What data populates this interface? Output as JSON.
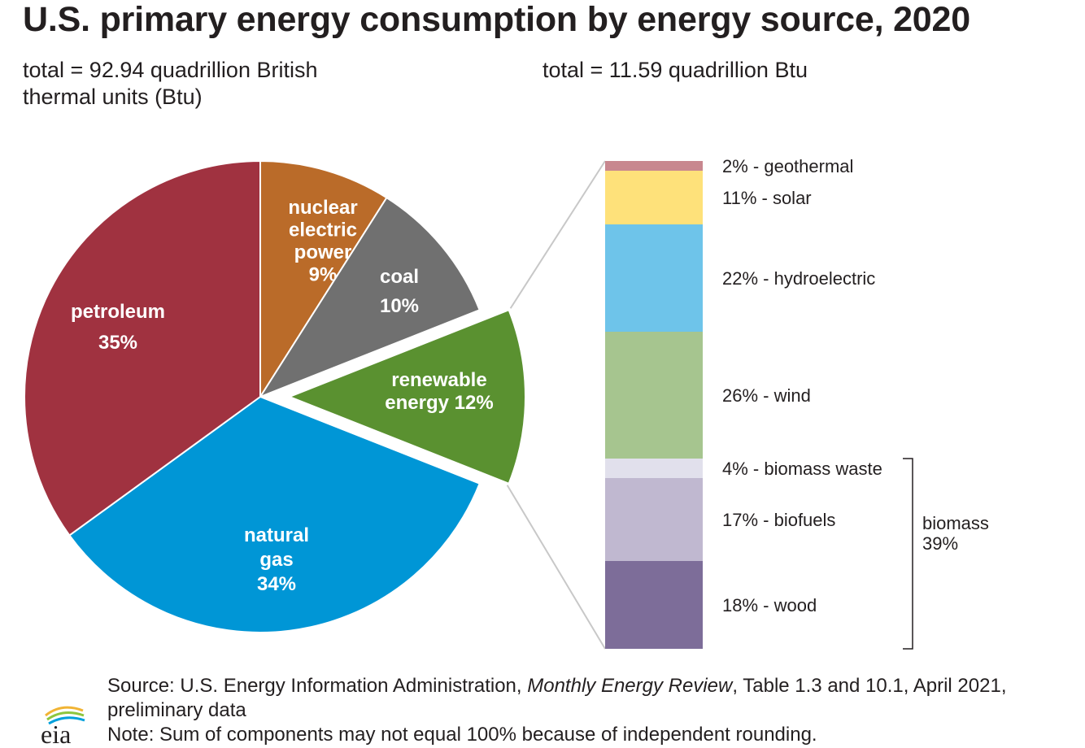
{
  "title": "U.S. primary energy consumption by energy source, 2020",
  "left_total": "total = 92.94 quadrillion British thermal units (Btu)",
  "right_total": "total = 11.59 quadrillion Btu",
  "source": {
    "prefix": "Source: U.S. Energy Information Administration, ",
    "publication": "Monthly Energy Review",
    "suffix": ", Table 1.3 and 10.1, April 2021, preliminary data"
  },
  "note": "Note: Sum of components may not equal 100% because of independent rounding.",
  "logo_text": "eia",
  "chart_data": [
    {
      "type": "pie",
      "title": "U.S. primary energy consumption by energy source, 2020",
      "total": "92.94 quadrillion British thermal units (Btu)",
      "slices": [
        {
          "key": "nuclear",
          "label_lines": [
            "nuclear",
            "electric",
            "power",
            "9%"
          ],
          "value": 9,
          "color": "#ba6b29"
        },
        {
          "key": "coal",
          "label_lines": [
            "coal",
            "10%"
          ],
          "value": 10,
          "color": "#707070"
        },
        {
          "key": "renewable",
          "label_lines": [
            "renewable",
            "energy 12%"
          ],
          "value": 12,
          "color": "#5a9130",
          "exploded": true
        },
        {
          "key": "natural-gas",
          "label_lines": [
            "natural",
            "gas",
            "34%"
          ],
          "value": 34,
          "color": "#0096d6"
        },
        {
          "key": "petroleum",
          "label_lines": [
            "petroleum",
            "35%"
          ],
          "value": 35,
          "color": "#a03240"
        }
      ]
    },
    {
      "type": "bar",
      "stacked": true,
      "total": "11.59 quadrillion Btu",
      "segments": [
        {
          "key": "geothermal",
          "label": "2% - geothermal",
          "value": 2,
          "color": "#c8878f"
        },
        {
          "key": "solar",
          "label": "11% - solar",
          "value": 11,
          "color": "#fee17a"
        },
        {
          "key": "hydroelectric",
          "label": "22% - hydroelectric",
          "value": 22,
          "color": "#6ec4ea"
        },
        {
          "key": "wind",
          "label": "26% - wind",
          "value": 26,
          "color": "#a6c58f"
        },
        {
          "key": "biomass-waste",
          "label": "4% - biomass waste",
          "value": 4,
          "color": "#e1e0ec"
        },
        {
          "key": "biofuels",
          "label": "17% - biofuels",
          "value": 17,
          "color": "#c0b8d0"
        },
        {
          "key": "wood",
          "label": "18% - wood",
          "value": 18,
          "color": "#7d6d99"
        }
      ],
      "group": {
        "label_lines": [
          "biomass",
          "39%"
        ],
        "value": 39,
        "members": [
          "biomass-waste",
          "biofuels",
          "wood"
        ]
      }
    }
  ]
}
